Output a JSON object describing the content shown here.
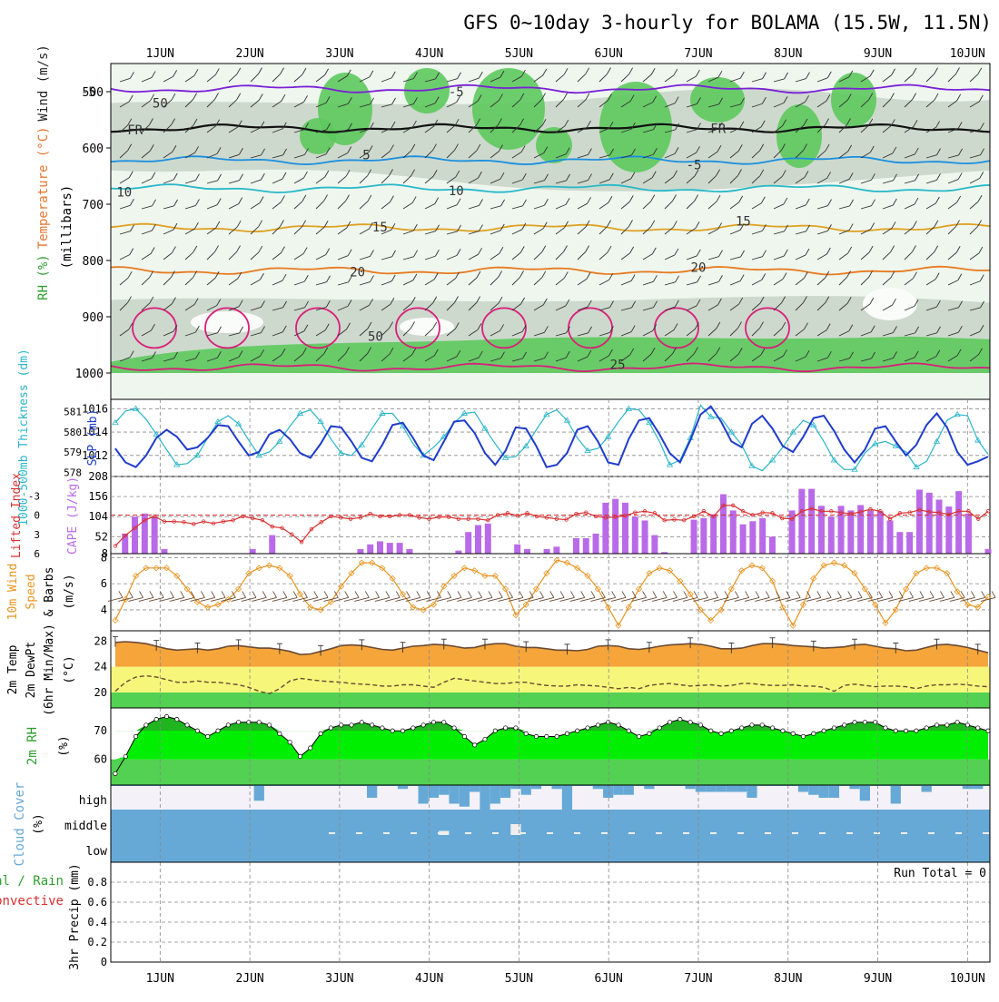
{
  "title": "GFS 0~10day 3-hourly for BOLAMA (15.5W, 11.5N)",
  "colors": {
    "wind": "#8a2be2",
    "temperature": "#e8752f",
    "rh_green": "#57c957",
    "cyan": "#2bb5c7",
    "blue": "#1f3ccc",
    "purple_bar": "#b96ae8",
    "red": "#d93030",
    "orange": "#e89420",
    "brown": "#6a4a35",
    "cloud": "#66a9d6",
    "bright_green": "#00ee00"
  },
  "chart_data": [
    {
      "id": "upper",
      "type": "heatmap",
      "days": [
        "1JUN",
        "2JUN",
        "3JUN",
        "4JUN",
        "5JUN",
        "6JUN",
        "7JUN",
        "8JUN",
        "9JUN",
        "10JUN"
      ],
      "ylabel_parts": [
        "RH (%)",
        "Temperature (°C)",
        "Wind (m/s)"
      ],
      "ylabel_sub": "(millibars)",
      "yticks": [
        "500",
        "600",
        "700",
        "800",
        "900",
        "1000"
      ],
      "contour_labels": [
        {
          "text": "-5",
          "time": 0.2,
          "p": 500
        },
        {
          "text": "-5",
          "time": 4.3,
          "p": 500
        },
        {
          "text": "FR",
          "time": 0.72,
          "p": 568
        },
        {
          "text": "FR",
          "time": 7.22,
          "p": 565
        },
        {
          "text": "5",
          "time": 3.3,
          "p": 612
        },
        {
          "text": "-5",
          "time": 6.95,
          "p": 630
        },
        {
          "text": "10",
          "time": 0.6,
          "p": 678
        },
        {
          "text": "10",
          "time": 4.3,
          "p": 676
        },
        {
          "text": "15",
          "time": 3.45,
          "p": 740
        },
        {
          "text": "15",
          "time": 7.5,
          "p": 730
        },
        {
          "text": "20",
          "time": 3.2,
          "p": 820
        },
        {
          "text": "20",
          "time": 7.0,
          "p": 812
        },
        {
          "text": "50",
          "time": 1.0,
          "p": 520
        },
        {
          "text": "50",
          "time": 3.4,
          "p": 935
        },
        {
          "text": "25",
          "time": 6.1,
          "p": 985
        }
      ],
      "isotherms": [
        {
          "name": "-5",
          "p": 495,
          "color": "#7a1fd6"
        },
        {
          "name": "FR",
          "p": 565,
          "color": "#111111"
        },
        {
          "name": "5",
          "p": 622,
          "color": "#1a8fe0"
        },
        {
          "name": "10",
          "p": 672,
          "color": "#27b8c9"
        },
        {
          "name": "15",
          "p": 742,
          "color": "#e0a020"
        },
        {
          "name": "20",
          "p": 818,
          "color": "#e87a20"
        },
        {
          "name": "25",
          "p": 990,
          "color": "#d91f7a"
        }
      ]
    },
    {
      "id": "slp",
      "type": "line",
      "ylabel_left": "1000-500mb Thickness (dm)",
      "ylabel_right": "SLP (mb)",
      "yticks_left": [
        "578",
        "579",
        "580",
        "581"
      ],
      "yticks_right": [
        "1012",
        "1014",
        "1016"
      ],
      "ylim_left": [
        577.8,
        581.6
      ],
      "ylim_right": [
        1010.2,
        1016.8
      ],
      "series": [
        {
          "color": "#2ab5c8",
          "values": [
            1014.8,
            1015.8,
            1016.0,
            1015.1,
            1013.8,
            1012.5,
            1011.2,
            1011.3,
            1012.0,
            1013.5,
            1014.9,
            1015.4,
            1014.7,
            1013.3,
            1012.0,
            1012.3,
            1013.2,
            1014.5,
            1015.6,
            1015.9,
            1014.9,
            1013.4,
            1012.2,
            1012.0,
            1012.9,
            1014.3,
            1015.6,
            1015.6,
            1014.5,
            1013.0,
            1012.0,
            1012.7,
            1013.6,
            1014.8,
            1015.6,
            1015.7,
            1014.3,
            1013.0,
            1011.8,
            1011.9,
            1012.8,
            1014.2,
            1015.5,
            1015.9,
            1015.0,
            1013.5,
            1012.4,
            1012.6,
            1013.6,
            1014.9,
            1016.0,
            1015.9,
            1014.8,
            1013.2,
            1011.2,
            1011.6,
            1013.5,
            1016.3,
            1015.3,
            1015.2,
            1014.0,
            1012.9,
            1011.1,
            1010.7,
            1011.6,
            1012.7,
            1014.0,
            1015.0,
            1014.6,
            1013.2,
            1011.6,
            1010.8,
            1010.8,
            1012.2,
            1013.0,
            1013.2,
            1012.8,
            1012.3,
            1011.0,
            1011.5,
            1013.2,
            1015.0,
            1015.5,
            1015.4,
            1013.3,
            1012.1
          ]
        },
        {
          "color": "#1f3ccc",
          "values": [
            1012.6,
            1011.4,
            1011.0,
            1012.0,
            1013.5,
            1014.2,
            1013.6,
            1012.5,
            1012.7,
            1013.5,
            1014.6,
            1014.5,
            1013.2,
            1012.0,
            1012.3,
            1013.8,
            1014.2,
            1013.4,
            1012.2,
            1011.8,
            1013.0,
            1014.5,
            1014.4,
            1013.2,
            1011.8,
            1011.5,
            1012.9,
            1014.6,
            1014.8,
            1013.5,
            1012.0,
            1011.6,
            1013.2,
            1014.9,
            1015.0,
            1013.9,
            1012.2,
            1011.2,
            1012.4,
            1014.4,
            1014.3,
            1012.8,
            1011.0,
            1011.2,
            1012.2,
            1014.2,
            1014.5,
            1013.2,
            1011.4,
            1011.2,
            1013.4,
            1015.0,
            1015.2,
            1013.8,
            1012.2,
            1011.4,
            1013.3,
            1015.5,
            1016.2,
            1014.9,
            1013.2,
            1012.7,
            1014.7,
            1015.4,
            1014.3,
            1012.8,
            1012.3,
            1013.6,
            1015.2,
            1015.4,
            1014.1,
            1012.5,
            1011.4,
            1012.5,
            1014.3,
            1014.5,
            1013.2,
            1012.0,
            1012.9,
            1014.6,
            1015.6,
            1014.4,
            1012.3,
            1011.2,
            1011.5,
            1011.9
          ]
        }
      ]
    },
    {
      "id": "cape",
      "type": "bar",
      "ylabel_left": "Lifted Index",
      "ylabel_right": "CAPE (J/kg)",
      "yticks_left": [
        "-3",
        "0",
        "3",
        "6"
      ],
      "yticks_right": [
        "8",
        "52",
        "104",
        "156",
        "208"
      ],
      "ylim_right": [
        8,
        208
      ],
      "ylim_left": [
        -6,
        6
      ],
      "cape": [
        0,
        60,
        104,
        112,
        104,
        20,
        8,
        8,
        8,
        8,
        8,
        8,
        8,
        8,
        20,
        8,
        56,
        8,
        8,
        8,
        8,
        8,
        8,
        8,
        8,
        20,
        32,
        40,
        36,
        36,
        20,
        8,
        8,
        8,
        8,
        16,
        64,
        82,
        86,
        8,
        8,
        32,
        20,
        8,
        20,
        26,
        8,
        48,
        48,
        60,
        140,
        150,
        140,
        104,
        94,
        56,
        12,
        8,
        8,
        96,
        100,
        110,
        162,
        120,
        84,
        92,
        100,
        52,
        8,
        120,
        176,
        176,
        132,
        104,
        132,
        120,
        134,
        120,
        118,
        94,
        64,
        64,
        174,
        166,
        148,
        130,
        170,
        112,
        8,
        20
      ],
      "lifted": [
        4.8,
        3.2,
        2.0,
        0.8,
        0.2,
        1.0,
        1.0,
        1.1,
        1.4,
        1.0,
        1.3,
        1.0,
        0.8,
        0.2,
        0.5,
        0.8,
        1.8,
        2.0,
        3.0,
        4.2,
        2.2,
        1.1,
        0.2,
        0.4,
        0.6,
        0.4,
        -0.2,
        0.2,
        0.2,
        0.0,
        0.0,
        0.4,
        0.6,
        0.3,
        0.3,
        0.6,
        0.6,
        0.6,
        0.8,
        0.0,
        -0.3,
        0.1,
        -0.3,
        0.2,
        0.4,
        0.6,
        0.7,
        -0.2,
        -0.4,
        0.2,
        0.4,
        0.3,
        0.1,
        -0.4,
        -0.6,
        -0.3,
        0.8,
        0.7,
        0.8,
        0.2,
        -0.6,
        0.2,
        -1.5,
        -1.5,
        -0.6,
        0.0,
        -0.4,
        -0.3,
        0.5,
        0.6,
        -0.6,
        -1.0,
        -0.6,
        -0.6,
        -0.4,
        -0.2,
        -0.5,
        -0.9,
        -0.6,
        0.6,
        -0.3,
        -0.4,
        -0.8,
        -0.5,
        -0.4,
        -0.1,
        -0.6,
        -0.6,
        0.6,
        -0.6
      ]
    },
    {
      "id": "wind10",
      "type": "line",
      "ylabel_parts": [
        "10m Wind",
        "Speed",
        "& Barbs"
      ],
      "yunit": "(m/s)",
      "yticks": [
        "4",
        "6",
        "8"
      ],
      "ylim": [
        2.4,
        8.3
      ],
      "values": [
        3.2,
        4.8,
        6.6,
        7.2,
        7.2,
        7.2,
        6.6,
        5.6,
        4.6,
        4.2,
        4.4,
        4.8,
        5.6,
        6.8,
        7.2,
        7.4,
        7.2,
        6.6,
        5.2,
        4.2,
        4.0,
        4.6,
        5.8,
        6.8,
        7.6,
        7.6,
        7.2,
        6.4,
        5.2,
        4.2,
        4.0,
        4.4,
        5.8,
        6.6,
        7.2,
        7.0,
        6.6,
        6.6,
        5.6,
        3.6,
        4.4,
        5.6,
        6.8,
        7.8,
        7.6,
        7.2,
        6.6,
        5.6,
        4.2,
        2.8,
        4.2,
        5.6,
        6.8,
        7.2,
        7.0,
        6.2,
        5.2,
        4.0,
        3.2,
        4.0,
        5.6,
        7.0,
        7.4,
        7.2,
        6.2,
        4.2,
        2.8,
        4.4,
        6.4,
        7.4,
        7.6,
        7.4,
        6.8,
        5.6,
        4.4,
        3.0,
        4.0,
        5.6,
        6.8,
        7.2,
        7.2,
        6.8,
        5.4,
        4.4,
        4.2,
        5.0
      ]
    },
    {
      "id": "temp2m",
      "type": "area",
      "ylabel_parts": [
        "2m Temp",
        "2m DewPt",
        "(6hr Min/Max)"
      ],
      "yunit": "(°C)",
      "yticks": [
        "20",
        "24",
        "28"
      ],
      "ylim": [
        17.6,
        29.6
      ],
      "temp": [
        27.8,
        27.9,
        27.8,
        27.6,
        27.2,
        26.8,
        26.6,
        26.7,
        26.8,
        26.6,
        26.8,
        27.2,
        27.3,
        27.1,
        26.9,
        26.9,
        26.7,
        26.4,
        25.9,
        26.0,
        26.4,
        26.8,
        27.3,
        27.4,
        27.3,
        27.0,
        26.7,
        26.6,
        26.9,
        27.2,
        27.3,
        27.5,
        27.4,
        27.2,
        26.9,
        27.0,
        27.4,
        27.6,
        27.6,
        27.2,
        27.0,
        27.0,
        26.8,
        26.6,
        26.6,
        26.5,
        26.7,
        27.2,
        27.3,
        27.2,
        26.8,
        26.7,
        26.9,
        27.2,
        27.4,
        27.5,
        27.6,
        27.5,
        27.2,
        26.8,
        26.8,
        26.9,
        27.3,
        27.6,
        27.6,
        27.5,
        27.3,
        27.2,
        27.1,
        26.9,
        27.0,
        27.1,
        27.4,
        27.5,
        27.2,
        26.9,
        26.8,
        26.5,
        26.6,
        27.0,
        27.4,
        27.5,
        27.3,
        27.0,
        26.6,
        26.2
      ],
      "dew": [
        20.2,
        21.6,
        22.4,
        22.6,
        22.4,
        22.0,
        21.6,
        21.6,
        21.8,
        21.6,
        21.6,
        21.4,
        21.2,
        20.8,
        20.2,
        19.8,
        20.6,
        21.8,
        22.2,
        22.0,
        21.8,
        21.7,
        21.6,
        21.4,
        21.3,
        21.2,
        21.0,
        21.0,
        21.2,
        21.2,
        21.0,
        20.8,
        21.6,
        22.2,
        22.0,
        21.8,
        21.6,
        21.4,
        21.4,
        21.6,
        21.6,
        21.3,
        21.1,
        21.0,
        21.0,
        21.2,
        21.1,
        21.0,
        20.8,
        20.6,
        20.8,
        20.6,
        21.1,
        21.3,
        21.4,
        21.2,
        21.0,
        21.1,
        21.2,
        21.0,
        21.1,
        21.4,
        21.4,
        21.2,
        21.1,
        21.1,
        21.2,
        21.0,
        21.0,
        20.8,
        20.2,
        21.1,
        21.3,
        21.1,
        20.9,
        21.0,
        21.0,
        20.9,
        20.6,
        21.0,
        21.2,
        21.2,
        21.3,
        21.2,
        21.0,
        20.9
      ]
    },
    {
      "id": "rh2m",
      "type": "area",
      "ylabel": "2m RH",
      "yunit": "(%)",
      "yticks": [
        "60",
        "70"
      ],
      "ylim": [
        51,
        78
      ],
      "values": [
        55,
        61,
        68,
        72,
        74,
        75,
        74,
        72,
        70,
        68,
        70,
        72,
        73,
        73,
        73,
        72,
        69,
        66,
        61,
        64,
        69,
        71,
        72,
        72,
        73,
        72,
        71,
        70,
        70,
        71,
        72,
        73,
        73,
        71,
        68,
        65,
        67,
        70,
        71,
        71,
        69,
        68,
        68,
        68,
        69,
        70,
        71,
        72,
        73,
        72,
        70,
        68,
        69,
        71,
        73,
        74,
        73,
        72,
        70,
        69,
        70,
        71,
        72,
        72,
        71,
        70,
        69,
        68,
        69,
        70,
        71,
        72,
        73,
        73,
        73,
        71,
        70,
        70,
        70,
        71,
        72,
        72,
        73,
        72,
        71,
        70
      ]
    },
    {
      "id": "cloud",
      "type": "bar",
      "ylabel": "Cloud Cover",
      "yunit": "(%)",
      "levels": [
        "high",
        "middle",
        "low"
      ],
      "high": [
        0,
        0,
        0,
        0,
        0,
        0,
        0,
        0,
        0,
        0,
        0,
        0,
        0,
        0,
        25,
        0,
        0,
        0,
        0,
        0,
        0,
        0,
        0,
        0,
        0,
        20,
        0,
        0,
        5,
        0,
        30,
        20,
        15,
        30,
        35,
        10,
        40,
        30,
        20,
        5,
        15,
        5,
        0,
        5,
        40,
        0,
        0,
        5,
        20,
        15,
        15,
        0,
        5,
        0,
        0,
        0,
        5,
        10,
        10,
        10,
        10,
        10,
        20,
        0,
        0,
        0,
        0,
        10,
        15,
        20,
        20,
        0,
        5,
        25,
        0,
        0,
        30,
        0,
        0,
        10,
        0,
        0,
        0,
        5,
        5,
        0
      ],
      "middle": [
        0,
        0,
        0,
        0,
        0,
        0,
        0,
        0,
        0,
        0,
        0,
        0,
        0,
        0,
        0,
        0,
        0,
        0,
        0,
        0,
        0,
        0,
        0,
        0,
        0,
        0,
        0,
        0,
        0,
        0,
        0,
        0,
        5,
        0,
        0,
        0,
        0,
        0,
        0,
        20,
        0,
        0,
        0,
        0,
        0,
        0,
        0,
        0,
        0,
        0,
        0,
        0,
        0,
        0,
        0,
        0,
        0,
        0,
        0,
        0,
        0,
        0,
        0,
        0,
        0,
        0,
        0,
        0,
        0,
        0,
        0,
        0,
        0,
        0,
        0,
        0,
        0,
        0,
        0,
        0,
        0,
        0,
        0,
        0,
        0,
        0
      ]
    },
    {
      "id": "precip",
      "type": "bar",
      "ylabel_left": "Total / Rain",
      "ylabel_left2": "Convective",
      "ylabel": "3hr Precip (mm)",
      "yticks": [
        "0",
        "0.2",
        "0.4",
        "0.6",
        "0.8"
      ],
      "ylim": [
        0,
        1.0
      ],
      "run_total": "Run Total = 0",
      "values": []
    }
  ]
}
